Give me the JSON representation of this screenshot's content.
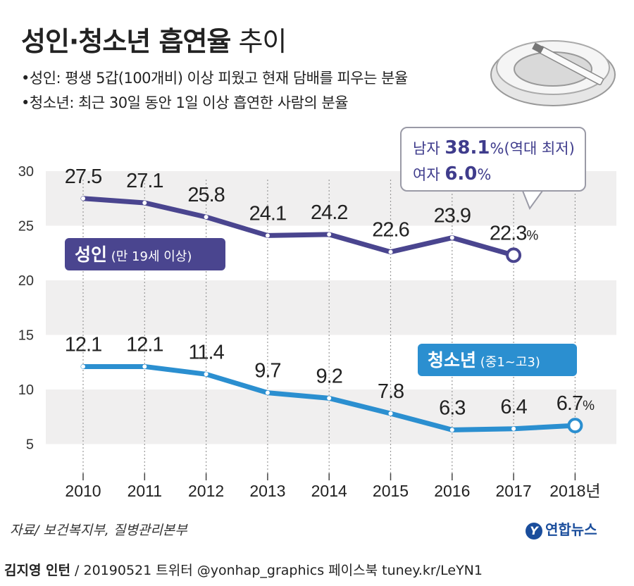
{
  "header": {
    "title_bold": "성인·청소년 흡연율",
    "title_light": "추이",
    "bullet1": "•성인: 평생 5갑(100개비) 이상 피웠고 현재 담배를 피우는 분율",
    "bullet2": "•청소년: 최근 30일 동안 1일 이상 흡연한 사람의 분율"
  },
  "callout": {
    "male_label": "남자",
    "male_value": "38.1",
    "male_unit": "%(역대 최저)",
    "female_label": "여자",
    "female_value": "6.0",
    "female_unit": "%"
  },
  "chart_data": {
    "type": "line",
    "categories": [
      "2010",
      "2011",
      "2012",
      "2013",
      "2014",
      "2015",
      "2016",
      "2017",
      "2018년"
    ],
    "ylim": [
      4,
      30
    ],
    "y_ticks": [
      5,
      10,
      15,
      20,
      25,
      30
    ],
    "grid": "horizontal bands",
    "series": [
      {
        "name": "성인",
        "name_detail": "(만 19세 이상)",
        "color": "#4a458f",
        "values": [
          27.5,
          27.1,
          25.8,
          24.1,
          24.2,
          22.6,
          23.9,
          22.3,
          null
        ],
        "labels": [
          "27.5",
          "27.1",
          "25.8",
          "24.1",
          "24.2",
          "22.6",
          "23.9",
          "22.3%",
          ""
        ]
      },
      {
        "name": "청소년",
        "name_detail": "(중1~고3)",
        "color": "#2b8fd0",
        "values": [
          12.1,
          12.1,
          11.4,
          9.7,
          9.2,
          7.8,
          6.3,
          6.4,
          6.7
        ],
        "labels": [
          "12.1",
          "12.1",
          "11.4",
          "9.7",
          "9.2",
          "7.8",
          "6.3",
          "6.4",
          "6.7%"
        ]
      }
    ]
  },
  "footer": {
    "source": "자료/ 보건복지부, 질병관리본부",
    "logo": "연합뉴스",
    "logo_mark": "Y",
    "author": "김지영 인턴",
    "credits": " / 20190521 트위터 @yonhap_graphics  페이스북 tuney.kr/LeYN1"
  },
  "colors": {
    "adult_line": "#4a458f",
    "youth_line": "#2b8fd0",
    "band": "#f0efef",
    "callout_text": "#3f3c8c"
  }
}
